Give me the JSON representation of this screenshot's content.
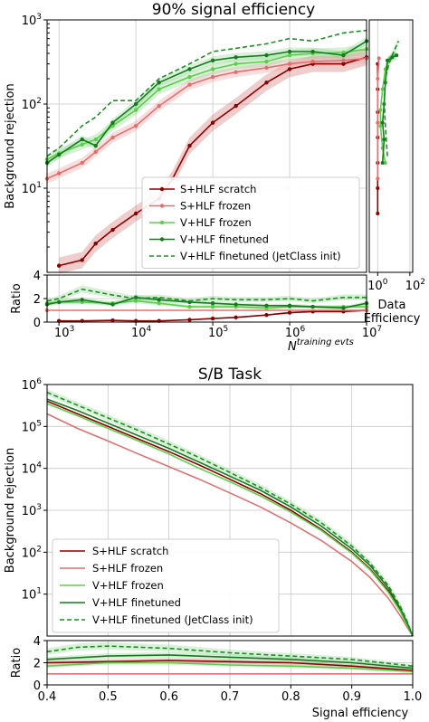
{
  "colors": {
    "s_scratch": "#8b0000",
    "s_frozen": "#e07070",
    "v_frozen": "#5ccf4a",
    "v_finetuned": "#157a1f",
    "v_jetclass": "#1e8f23",
    "band_scratch": "#d07070",
    "band_frozen": "#f0a0a0",
    "band_v": "#90d890"
  },
  "chart_data": [
    {
      "type": "line",
      "title": "90% signal efficiency",
      "ylabel": "Background rejection",
      "xlabel_base": "N",
      "xlabel_sup": "training evts",
      "xscale": "log",
      "yscale": "log",
      "xlim": [
        700,
        10000000
      ],
      "ylim": [
        1,
        1000
      ],
      "xticklabels": [
        "10",
        "10",
        "10",
        "10",
        "10"
      ],
      "xtickexps": [
        "3",
        "4",
        "5",
        "6",
        "7"
      ],
      "yticklabels": [
        "10",
        "10",
        "10"
      ],
      "ytickexps": [
        "1",
        "2",
        "3"
      ],
      "grid": true,
      "legend_position": "lower-right",
      "series": [
        {
          "name": "S+HLF scratch",
          "key": "s_scratch",
          "marker": true,
          "dashed": false,
          "x": [
            1000,
            2000,
            3000,
            5000,
            10000,
            20000,
            30000,
            50000,
            100000,
            200000,
            500000,
            1000000,
            2000000,
            5000000,
            10000000
          ],
          "y": [
            1.2,
            1.4,
            2.2,
            3.2,
            5.0,
            7.5,
            13,
            32,
            60,
            95,
            180,
            260,
            300,
            300,
            360
          ]
        },
        {
          "name": "S+HLF frozen",
          "key": "s_frozen",
          "marker": true,
          "dashed": false,
          "x": [
            700,
            1000,
            2000,
            3000,
            5000,
            10000,
            20000,
            50000,
            100000,
            200000,
            500000,
            1000000,
            2000000,
            5000000,
            10000000
          ],
          "y": [
            13,
            15,
            20,
            27,
            40,
            55,
            95,
            170,
            210,
            240,
            270,
            300,
            320,
            330,
            350
          ]
        },
        {
          "name": "V+HLF frozen",
          "key": "v_frozen",
          "marker": true,
          "dashed": false,
          "x": [
            700,
            1000,
            2000,
            3000,
            5000,
            10000,
            20000,
            50000,
            100000,
            200000,
            500000,
            1000000,
            2000000,
            5000000,
            10000000
          ],
          "y": [
            22,
            26,
            33,
            38,
            55,
            85,
            150,
            210,
            260,
            300,
            320,
            380,
            400,
            410,
            450
          ]
        },
        {
          "name": "V+HLF finetuned",
          "key": "v_finetuned",
          "marker": true,
          "dashed": false,
          "x": [
            700,
            1000,
            2000,
            3000,
            5000,
            10000,
            20000,
            50000,
            100000,
            200000,
            500000,
            1000000,
            2000000,
            5000000,
            10000000
          ],
          "y": [
            20,
            25,
            38,
            32,
            60,
            100,
            180,
            260,
            330,
            360,
            380,
            420,
            420,
            380,
            560
          ]
        },
        {
          "name": "V+HLF finetuned (JetClass init)",
          "key": "v_jetclass",
          "marker": false,
          "dashed": true,
          "x": [
            700,
            1000,
            2000,
            3000,
            5000,
            10000,
            20000,
            50000,
            100000,
            200000,
            500000,
            1000000,
            2000000,
            5000000,
            10000000
          ],
          "y": [
            24,
            30,
            55,
            70,
            110,
            110,
            200,
            300,
            420,
            460,
            520,
            600,
            560,
            700,
            750
          ]
        }
      ]
    },
    {
      "type": "line",
      "title": "",
      "ylabel": "Ratio",
      "xscale": "log",
      "xlim": [
        700,
        10000000
      ],
      "ylim": [
        0,
        4
      ],
      "yticklabels": [
        "0",
        "2",
        "4"
      ],
      "grid": true,
      "series": [
        {
          "key": "s_scratch",
          "x": [
            1000,
            2000,
            5000,
            10000,
            20000,
            50000,
            100000,
            200000,
            500000,
            1000000,
            2000000,
            5000000,
            10000000
          ],
          "y": [
            0.1,
            0.1,
            0.15,
            0.1,
            0.1,
            0.2,
            0.3,
            0.4,
            0.6,
            0.8,
            0.9,
            0.9,
            1.0
          ]
        },
        {
          "key": "s_frozen",
          "x": [
            700,
            10000000
          ],
          "y": [
            1,
            1
          ]
        },
        {
          "key": "v_frozen",
          "x": [
            700,
            1000,
            2000,
            5000,
            10000,
            20000,
            50000,
            100000,
            200000,
            500000,
            1000000,
            2000000,
            5000000,
            10000000
          ],
          "y": [
            1.6,
            1.7,
            1.7,
            1.6,
            1.8,
            1.6,
            1.3,
            1.3,
            1.3,
            1.2,
            1.3,
            1.3,
            1.3,
            1.3
          ]
        },
        {
          "key": "v_finetuned",
          "x": [
            700,
            1000,
            2000,
            5000,
            10000,
            20000,
            50000,
            100000,
            200000,
            500000,
            1000000,
            2000000,
            5000000,
            10000000
          ],
          "y": [
            1.5,
            1.7,
            1.9,
            1.5,
            2.1,
            1.9,
            1.7,
            1.6,
            1.5,
            1.4,
            1.4,
            1.3,
            1.2,
            1.6
          ]
        },
        {
          "key": "v_jetclass",
          "x": [
            700,
            1000,
            2000,
            5000,
            10000,
            20000,
            50000,
            100000,
            200000,
            500000,
            1000000,
            2000000,
            5000000,
            10000000
          ],
          "y": [
            1.8,
            2.0,
            2.8,
            2.3,
            2.0,
            2.1,
            1.8,
            2.0,
            1.9,
            1.9,
            2.0,
            1.8,
            2.1,
            2.1
          ]
        }
      ]
    },
    {
      "type": "line",
      "title": "",
      "xlabel": "Data Efficiency",
      "xscale": "log",
      "xticklabels": [
        "10",
        "10"
      ],
      "xtickexps": [
        "0",
        "2"
      ],
      "series": [
        {
          "key": "s_scratch",
          "x": [
            1,
            1,
            1,
            1,
            1,
            1,
            1
          ],
          "y": [
            300,
            150,
            80,
            40,
            20,
            10,
            5
          ]
        },
        {
          "key": "s_frozen",
          "x": [
            1.2,
            1.0,
            1.0,
            1.0
          ],
          "y": [
            350,
            200,
            60,
            13
          ]
        },
        {
          "key": "v_frozen",
          "x": [
            3,
            2,
            1.5,
            1.5,
            2,
            3,
            6,
            12
          ],
          "y": [
            20,
            30,
            55,
            85,
            150,
            260,
            350,
            380
          ]
        },
        {
          "key": "v_finetuned",
          "x": [
            2,
            2.5,
            2,
            2.5,
            3,
            4,
            8,
            15
          ],
          "y": [
            20,
            38,
            60,
            100,
            180,
            330,
            360,
            380
          ]
        },
        {
          "key": "v_jetclass",
          "x": [
            4,
            3,
            2.5,
            3,
            5,
            10,
            20
          ],
          "y": [
            24,
            55,
            110,
            200,
            300,
            420,
            560
          ]
        }
      ]
    },
    {
      "type": "line",
      "title": "S/B Task",
      "ylabel": "Background rejection",
      "xlabel": "Signal efficiency",
      "yscale": "log",
      "xlim": [
        0.4,
        1.0
      ],
      "ylim": [
        1,
        1000000
      ],
      "xticklabels": [
        "0.4",
        "0.5",
        "0.6",
        "0.7",
        "0.8",
        "0.9",
        "1.0"
      ],
      "yticklabels": [
        "10",
        "10",
        "10",
        "10",
        "10",
        "10"
      ],
      "ytickexps": [
        "1",
        "2",
        "3",
        "4",
        "5",
        "6"
      ],
      "grid": true,
      "legend_position": "lower-left",
      "series": [
        {
          "name": "S+HLF scratch",
          "key": "s_scratch",
          "dashed": false,
          "x": [
            0.4,
            0.45,
            0.5,
            0.55,
            0.6,
            0.65,
            0.7,
            0.75,
            0.8,
            0.85,
            0.9,
            0.93,
            0.96,
            0.98,
            0.99,
            1.0
          ],
          "y": [
            400000,
            200000,
            100000,
            50000,
            25000,
            12000,
            5500,
            2500,
            1000,
            350,
            100,
            40,
            12,
            4,
            2,
            1
          ]
        },
        {
          "name": "S+HLF frozen",
          "key": "s_frozen",
          "dashed": false,
          "x": [
            0.4,
            0.45,
            0.5,
            0.55,
            0.6,
            0.65,
            0.7,
            0.75,
            0.8,
            0.85,
            0.9,
            0.93,
            0.96,
            0.98,
            0.99,
            1.0
          ],
          "y": [
            200000,
            90000,
            45000,
            22000,
            11000,
            5500,
            2600,
            1200,
            500,
            190,
            60,
            25,
            8,
            3,
            1.7,
            1
          ]
        },
        {
          "name": "V+HLF frozen",
          "key": "v_frozen",
          "dashed": false,
          "x": [
            0.4,
            0.45,
            0.5,
            0.55,
            0.6,
            0.65,
            0.7,
            0.75,
            0.8,
            0.85,
            0.9,
            0.93,
            0.96,
            0.98,
            0.99,
            1.0
          ],
          "y": [
            350000,
            180000,
            90000,
            45000,
            22000,
            10000,
            4800,
            2200,
            900,
            330,
            95,
            38,
            11,
            3.8,
            1.9,
            1
          ]
        },
        {
          "name": "V+HLF finetuned",
          "key": "v_finetuned",
          "dashed": false,
          "x": [
            0.4,
            0.45,
            0.5,
            0.55,
            0.6,
            0.65,
            0.7,
            0.75,
            0.8,
            0.85,
            0.9,
            0.93,
            0.96,
            0.98,
            0.99,
            1.0
          ],
          "y": [
            450000,
            240000,
            120000,
            60000,
            30000,
            14000,
            6500,
            3000,
            1200,
            420,
            120,
            48,
            14,
            4.5,
            2.2,
            1
          ]
        },
        {
          "name": "V+HLF finetuned (JetClass init)",
          "key": "v_jetclass",
          "dashed": true,
          "x": [
            0.4,
            0.45,
            0.5,
            0.55,
            0.6,
            0.65,
            0.7,
            0.75,
            0.8,
            0.85,
            0.9,
            0.93,
            0.96,
            0.98,
            0.99,
            1.0
          ],
          "y": [
            650000,
            320000,
            160000,
            80000,
            38000,
            18000,
            8000,
            3500,
            1400,
            500,
            140,
            55,
            16,
            5,
            2.4,
            1
          ]
        }
      ]
    },
    {
      "type": "line",
      "title": "",
      "ylabel": "Ratio",
      "xlabel": "Signal efficiency",
      "xlim": [
        0.4,
        1.0
      ],
      "ylim": [
        0,
        4
      ],
      "yticklabels": [
        "0",
        "2",
        "4"
      ],
      "grid": true,
      "series": [
        {
          "key": "s_scratch",
          "x": [
            0.4,
            0.5,
            0.6,
            0.7,
            0.8,
            0.9,
            1.0
          ],
          "y": [
            2.0,
            2.1,
            2.2,
            2.1,
            2.0,
            1.7,
            1.3
          ]
        },
        {
          "key": "s_frozen",
          "x": [
            0.4,
            1.0
          ],
          "y": [
            1,
            1
          ]
        },
        {
          "key": "v_frozen",
          "x": [
            0.4,
            0.5,
            0.6,
            0.7,
            0.8,
            0.9,
            1.0
          ],
          "y": [
            1.7,
            2.0,
            2.0,
            1.8,
            1.7,
            1.5,
            1.2
          ]
        },
        {
          "key": "v_finetuned",
          "x": [
            0.4,
            0.5,
            0.6,
            0.7,
            0.8,
            0.9,
            1.0
          ],
          "y": [
            2.3,
            2.6,
            2.7,
            2.5,
            2.3,
            2.0,
            1.5
          ]
        },
        {
          "key": "v_jetclass",
          "x": [
            0.4,
            0.45,
            0.5,
            0.6,
            0.7,
            0.8,
            0.9,
            1.0
          ],
          "y": [
            3.0,
            3.4,
            3.5,
            3.3,
            2.9,
            2.6,
            2.3,
            1.7
          ]
        }
      ]
    }
  ]
}
